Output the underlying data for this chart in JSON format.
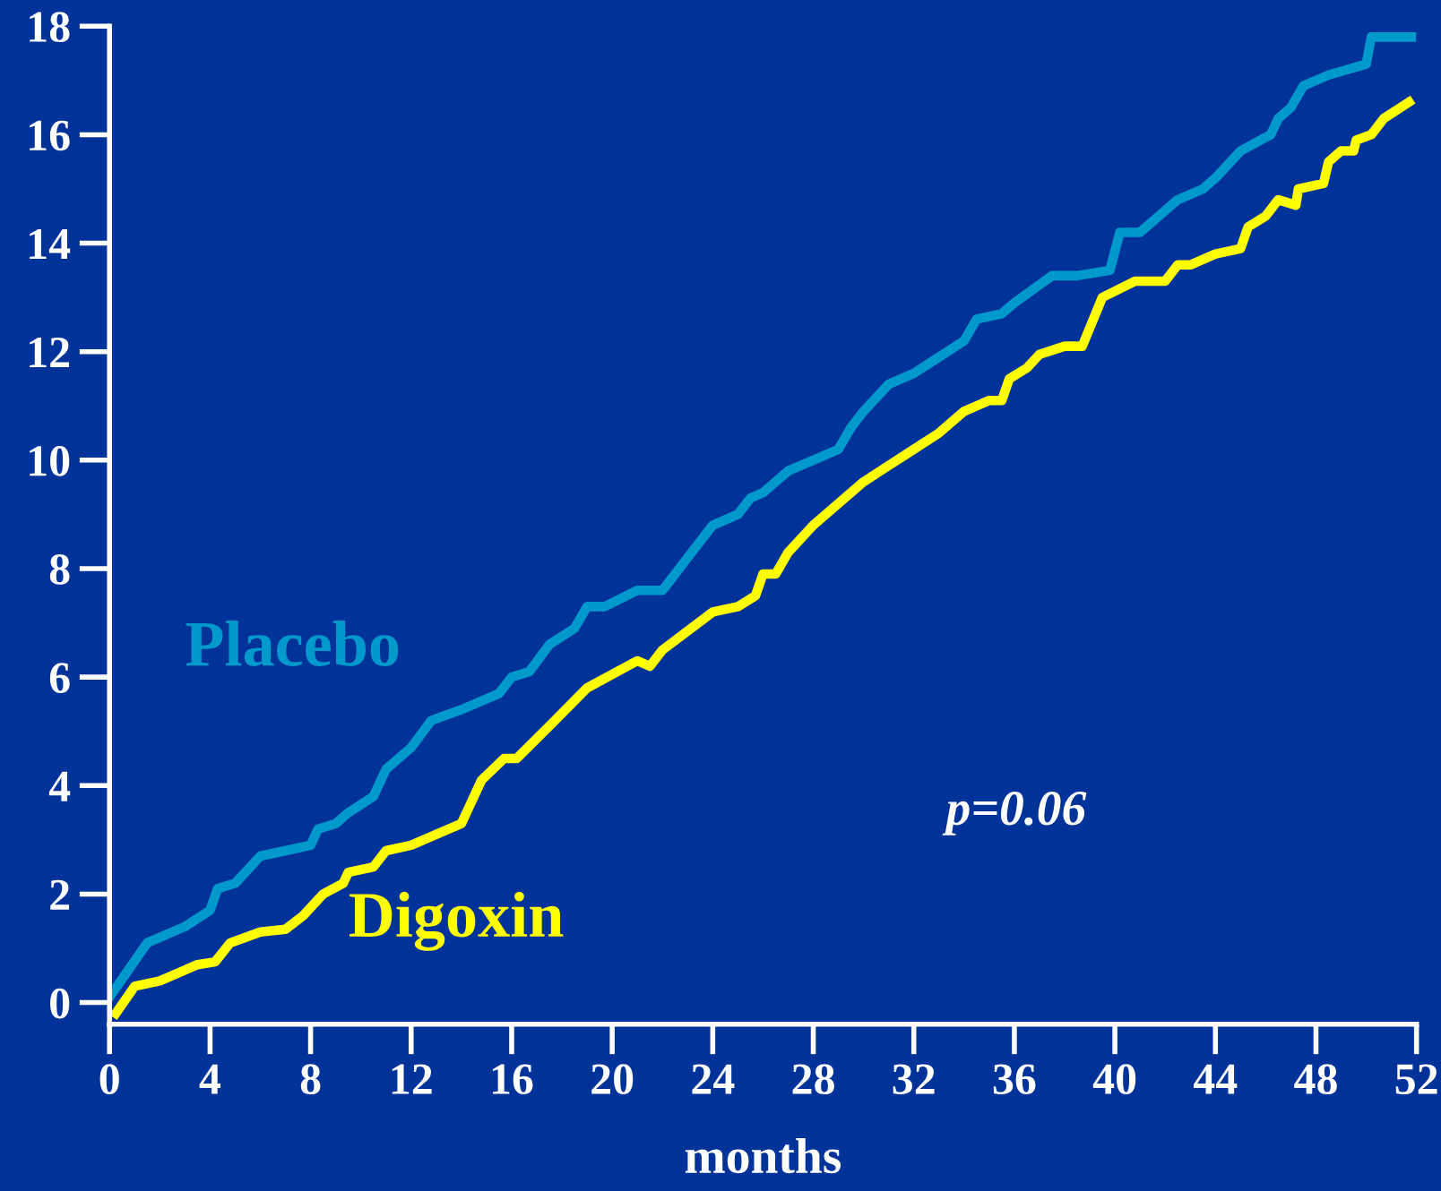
{
  "chart_data": {
    "type": "line",
    "xlabel": "months",
    "annotations": [
      "p=0.06"
    ],
    "xlim": [
      0,
      52
    ],
    "ylim": [
      -0.4,
      18
    ],
    "xticks": [
      0,
      4,
      8,
      12,
      16,
      20,
      24,
      28,
      32,
      36,
      40,
      44,
      48,
      52
    ],
    "yticks": [
      0,
      2,
      4,
      6,
      8,
      10,
      12,
      14,
      16,
      18
    ],
    "grid": false,
    "legend": false,
    "marker": "none",
    "line_style": "solid",
    "series": [
      {
        "name": "Placebo",
        "color": "#0099cc",
        "x": [
          0,
          1.5,
          3,
          4,
          4.3,
          5,
          6,
          7,
          8,
          8.3,
          9,
          9.5,
          10.5,
          11,
          12,
          12.8,
          14,
          15.5,
          16,
          16.7,
          17.5,
          18.5,
          19,
          19.7,
          21,
          22,
          24,
          25,
          25.5,
          26,
          27,
          28,
          29,
          29.5,
          30,
          31,
          32,
          33,
          34,
          34.5,
          35.5,
          36,
          37.5,
          38.5,
          39.8,
          40.2,
          41,
          42.5,
          43.5,
          44,
          45,
          45.8,
          46.2,
          46.5,
          47,
          47.5,
          48.5,
          50,
          50.2,
          51.8
        ],
        "values": [
          0.1,
          1.1,
          1.4,
          1.7,
          2.1,
          2.2,
          2.7,
          2.8,
          2.9,
          3.2,
          3.3,
          3.5,
          3.8,
          4.3,
          4.7,
          5.2,
          5.4,
          5.7,
          6.0,
          6.1,
          6.6,
          6.9,
          7.3,
          7.3,
          7.6,
          7.6,
          8.8,
          9.0,
          9.3,
          9.4,
          9.8,
          10.0,
          10.2,
          10.6,
          10.9,
          11.4,
          11.6,
          11.9,
          12.2,
          12.6,
          12.7,
          12.9,
          13.4,
          13.4,
          13.5,
          14.2,
          14.2,
          14.8,
          15.0,
          15.2,
          15.7,
          15.9,
          16.0,
          16.3,
          16.5,
          16.9,
          17.1,
          17.3,
          17.8,
          17.8
        ]
      },
      {
        "name": "Digoxin",
        "color": "#ffff00",
        "x": [
          0.25,
          1,
          2,
          2.5,
          3.5,
          4.2,
          4.8,
          6,
          7,
          7.7,
          8.5,
          9.3,
          9.5,
          10.5,
          11,
          12,
          14,
          14.8,
          15.7,
          16.2,
          17.5,
          19,
          21,
          21.5,
          22,
          24,
          25,
          25.7,
          26,
          26.5,
          27,
          28,
          29,
          30,
          31,
          32,
          33,
          34,
          35,
          35.5,
          35.8,
          36.5,
          37,
          38,
          38.7,
          39.5,
          40.8,
          42,
          42.5,
          43,
          44,
          45,
          45.3,
          46,
          46.5,
          47.2,
          47.3,
          48.3,
          48.5,
          49,
          49.5,
          49.6,
          50.2,
          50.7,
          51.7
        ],
        "values": [
          -0.2,
          0.3,
          0.4,
          0.5,
          0.7,
          0.75,
          1.1,
          1.3,
          1.35,
          1.6,
          2.0,
          2.2,
          2.4,
          2.5,
          2.8,
          2.9,
          3.3,
          4.1,
          4.5,
          4.5,
          5.1,
          5.8,
          6.3,
          6.2,
          6.5,
          7.2,
          7.3,
          7.5,
          7.9,
          7.9,
          8.3,
          8.8,
          9.2,
          9.6,
          9.9,
          10.2,
          10.5,
          10.9,
          11.1,
          11.1,
          11.5,
          11.7,
          11.95,
          12.1,
          12.1,
          13.0,
          13.3,
          13.3,
          13.6,
          13.6,
          13.8,
          13.9,
          14.3,
          14.5,
          14.8,
          14.7,
          15.0,
          15.1,
          15.5,
          15.7,
          15.7,
          15.9,
          16.0,
          16.3,
          16.6
        ]
      }
    ]
  }
}
